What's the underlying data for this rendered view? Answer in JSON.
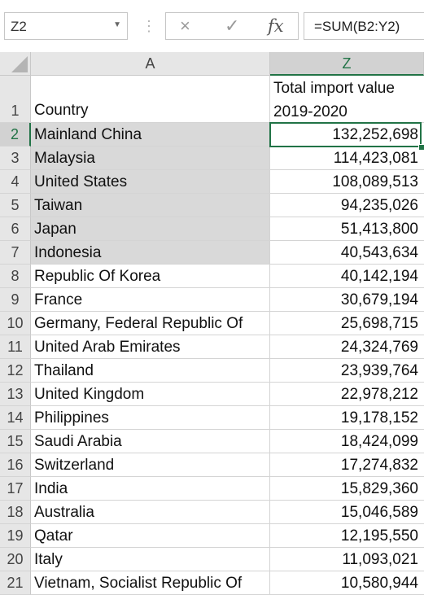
{
  "formula_bar": {
    "name_box": "Z2",
    "cancel_icon": "×",
    "enter_icon": "✓",
    "fx_label": "fx",
    "formula": "=SUM(B2:Y2)"
  },
  "columns": [
    {
      "label": "A"
    },
    {
      "label": "Z"
    }
  ],
  "header_row": {
    "num": "1",
    "country": "Country",
    "value_line1": "Total import value",
    "value_line2": "2019-2020"
  },
  "rows": [
    {
      "num": "2",
      "country": "Mainland China",
      "value": "132,252,698"
    },
    {
      "num": "3",
      "country": "Malaysia",
      "value": "114,423,081"
    },
    {
      "num": "4",
      "country": "United States",
      "value": "108,089,513"
    },
    {
      "num": "5",
      "country": "Taiwan",
      "value": "94,235,026"
    },
    {
      "num": "6",
      "country": "Japan",
      "value": "51,413,800"
    },
    {
      "num": "7",
      "country": "Indonesia",
      "value": "40,543,634"
    },
    {
      "num": "8",
      "country": "Republic Of Korea",
      "value": "40,142,194"
    },
    {
      "num": "9",
      "country": "France",
      "value": "30,679,194"
    },
    {
      "num": "10",
      "country": "Germany, Federal Republic Of",
      "value": "25,698,715"
    },
    {
      "num": "11",
      "country": "United Arab Emirates",
      "value": "24,324,769"
    },
    {
      "num": "12",
      "country": "Thailand",
      "value": "23,939,764"
    },
    {
      "num": "13",
      "country": "United Kingdom",
      "value": "22,978,212"
    },
    {
      "num": "14",
      "country": "Philippines",
      "value": "19,178,152"
    },
    {
      "num": "15",
      "country": "Saudi Arabia",
      "value": "18,424,099"
    },
    {
      "num": "16",
      "country": "Switzerland",
      "value": "17,274,832"
    },
    {
      "num": "17",
      "country": "India",
      "value": "15,829,360"
    },
    {
      "num": "18",
      "country": "Australia",
      "value": "15,046,589"
    },
    {
      "num": "19",
      "country": "Qatar",
      "value": "12,195,550"
    },
    {
      "num": "20",
      "country": "Italy",
      "value": "11,093,021"
    },
    {
      "num": "21",
      "country": "Vietnam, Socialist Republic Of",
      "value": "10,580,944"
    }
  ],
  "colors": {
    "accent": "#217346",
    "header_bg": "#e6e6e6",
    "selected_header_bg": "#d2d2d2",
    "shaded_cell": "#d9d9d9"
  }
}
